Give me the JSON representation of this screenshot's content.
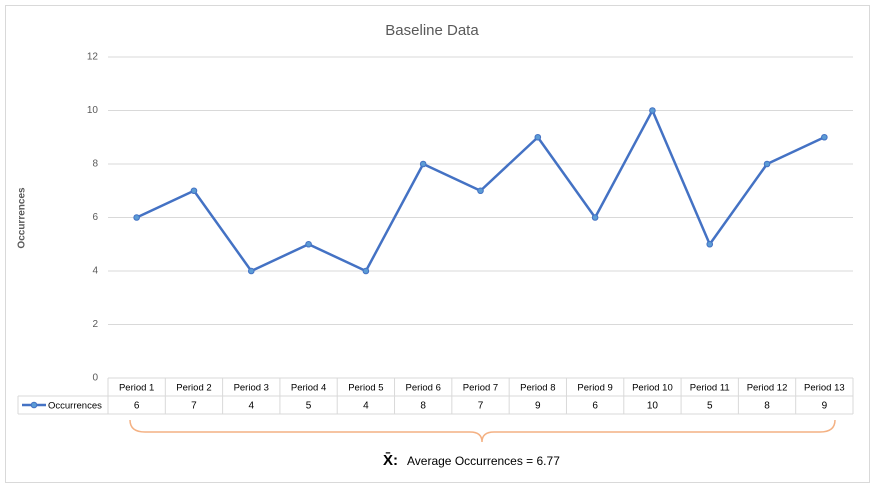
{
  "chart_data": {
    "type": "line",
    "title": "Baseline Data",
    "y_label": "Occurrences",
    "categories": [
      "Period 1",
      "Period 2",
      "Period 3",
      "Period 4",
      "Period 5",
      "Period 6",
      "Period 7",
      "Period 8",
      "Period 9",
      "Period 10",
      "Period 11",
      "Period 12",
      "Period 13"
    ],
    "series": [
      {
        "name": "Occurrences",
        "color": "#4472c4",
        "values": [
          6,
          7,
          4,
          5,
          4,
          8,
          7,
          9,
          6,
          10,
          5,
          8,
          9
        ]
      }
    ],
    "ylim": [
      0,
      12
    ],
    "yticks": [
      0,
      2,
      4,
      6,
      8,
      10,
      12
    ],
    "grid": true,
    "data_table": true,
    "annotation_symbol": "X̄:",
    "annotation": "Average Occurrences = 6.77"
  }
}
